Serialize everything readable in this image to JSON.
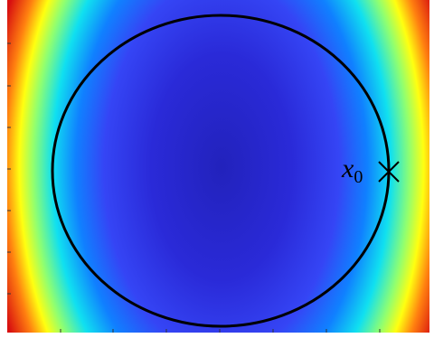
{
  "annotation": {
    "label": "x",
    "subscript": "0"
  }
}
